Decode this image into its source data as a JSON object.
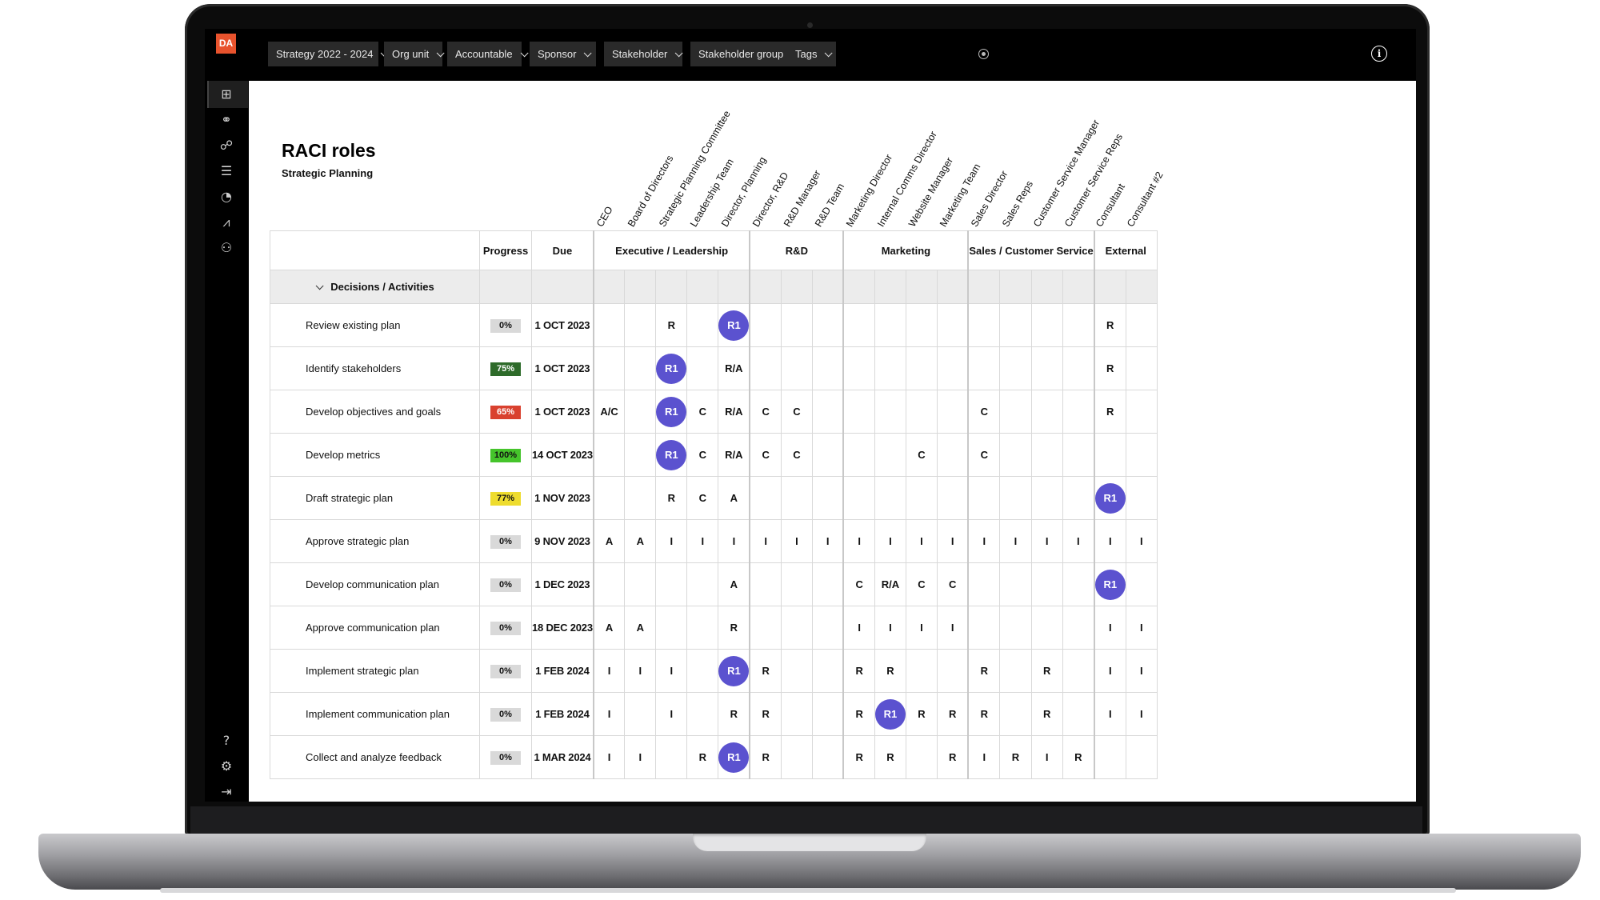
{
  "app": {
    "logo": "DA",
    "filters": [
      {
        "label": "Strategy 2022 - 2024"
      },
      {
        "label": "Org unit"
      },
      {
        "label": "Accountable"
      },
      {
        "label": "Sponsor"
      },
      {
        "label": "Stakeholder"
      },
      {
        "label": "Stakeholder group"
      },
      {
        "label": "Tags"
      }
    ],
    "sidebar_icons": [
      "grid-icon",
      "network-icon",
      "handshake-icon",
      "server-icon",
      "gauge-icon",
      "chart-icon",
      "org-chart-icon",
      "help-icon",
      "gear-icon",
      "logout-icon"
    ]
  },
  "page": {
    "title": "RACI roles",
    "subtitle": "Strategic Planning"
  },
  "roles": [
    "CEO",
    "Board of Directors",
    "Strategic Planning Committee",
    "Leadership Team",
    "Director, Planning",
    "Director, R&D",
    "R&D Manager",
    "R&D Team",
    "Marketing Director",
    "Internal Comms Director",
    "Website Manager",
    "Marketing Team",
    "Sales Director",
    "Sales Reps",
    "Customer Service Manager",
    "Customer Service Reps",
    "Consultant",
    "Consultant #2"
  ],
  "table": {
    "headers": {
      "progress": "Progress",
      "due": "Due"
    },
    "groups": [
      {
        "label": "Executive / Leadership",
        "span": 5
      },
      {
        "label": "R&D",
        "span": 3
      },
      {
        "label": "Marketing",
        "span": 4
      },
      {
        "label": "Sales / Customer Service",
        "span": 4
      },
      {
        "label": "External",
        "span": 2
      }
    ],
    "section": "Decisions / Activities",
    "rows": [
      {
        "name": "Review existing plan",
        "progress": "0%",
        "progress_color": "#d9d9d9",
        "due": "1 OCT 2023",
        "cells": [
          "",
          "",
          "R",
          "",
          "R1",
          "",
          "",
          "",
          "",
          "",
          "",
          "",
          "",
          "",
          "",
          "",
          "R",
          ""
        ]
      },
      {
        "name": "Identify stakeholders",
        "progress": "75%",
        "progress_color": "#2e6b2a",
        "due": "1 OCT 2023",
        "cells": [
          "",
          "",
          "R1",
          "",
          "R/A",
          "",
          "",
          "",
          "",
          "",
          "",
          "",
          "",
          "",
          "",
          "",
          "R",
          ""
        ]
      },
      {
        "name": "Develop objectives and goals",
        "progress": "65%",
        "progress_color": "#d9412f",
        "due": "1 OCT 2023",
        "cells": [
          "A/C",
          "",
          "R1",
          "C",
          "R/A",
          "C",
          "C",
          "",
          "",
          "",
          "",
          "",
          "C",
          "",
          "",
          "",
          "R",
          ""
        ]
      },
      {
        "name": "Develop metrics",
        "progress": "100%",
        "progress_color": "#45c42b",
        "due": "14 OCT 2023",
        "cells": [
          "",
          "",
          "R1",
          "C",
          "R/A",
          "C",
          "C",
          "",
          "",
          "",
          "C",
          "",
          "C",
          "",
          "",
          "",
          "",
          ""
        ]
      },
      {
        "name": "Draft strategic plan",
        "progress": "77%",
        "progress_color": "#eedc2e",
        "due": "1 NOV 2023",
        "cells": [
          "",
          "",
          "R",
          "C",
          "A",
          "",
          "",
          "",
          "",
          "",
          "",
          "",
          "",
          "",
          "",
          "",
          "R1",
          ""
        ]
      },
      {
        "name": "Approve strategic plan",
        "progress": "0%",
        "progress_color": "#d9d9d9",
        "due": "9 NOV 2023",
        "cells": [
          "A",
          "A",
          "I",
          "I",
          "I",
          "I",
          "I",
          "I",
          "I",
          "I",
          "I",
          "I",
          "I",
          "I",
          "I",
          "I",
          "I",
          "I"
        ]
      },
      {
        "name": "Develop communication plan",
        "progress": "0%",
        "progress_color": "#d9d9d9",
        "due": "1 DEC 2023",
        "cells": [
          "",
          "",
          "",
          "",
          "A",
          "",
          "",
          "",
          "C",
          "R/A",
          "C",
          "C",
          "",
          "",
          "",
          "",
          "R1",
          ""
        ]
      },
      {
        "name": "Approve communication plan",
        "progress": "0%",
        "progress_color": "#d9d9d9",
        "due": "18 DEC 2023",
        "cells": [
          "A",
          "A",
          "",
          "",
          "R",
          "",
          "",
          "",
          "I",
          "I",
          "I",
          "I",
          "",
          "",
          "",
          "",
          "I",
          "I"
        ]
      },
      {
        "name": "Implement strategic plan",
        "progress": "0%",
        "progress_color": "#d9d9d9",
        "due": "1 FEB 2024",
        "cells": [
          "I",
          "I",
          "I",
          "",
          "R1",
          "R",
          "",
          "",
          "R",
          "R",
          "",
          "",
          "R",
          "",
          "R",
          "",
          "I",
          "I"
        ]
      },
      {
        "name": "Implement communication plan",
        "progress": "0%",
        "progress_color": "#d9d9d9",
        "due": "1 FEB 2024",
        "cells": [
          "I",
          "",
          "I",
          "",
          "R",
          "R",
          "",
          "",
          "R",
          "R1",
          "R",
          "R",
          "R",
          "",
          "R",
          "",
          "I",
          "I"
        ]
      },
      {
        "name": "Collect and analyze feedback",
        "progress": "0%",
        "progress_color": "#d9d9d9",
        "due": "1 MAR 2024",
        "cells": [
          "I",
          "I",
          "",
          "R",
          "R1",
          "R",
          "",
          "",
          "R",
          "R",
          "",
          "R",
          "I",
          "R",
          "I",
          "R",
          "",
          ""
        ]
      }
    ]
  }
}
